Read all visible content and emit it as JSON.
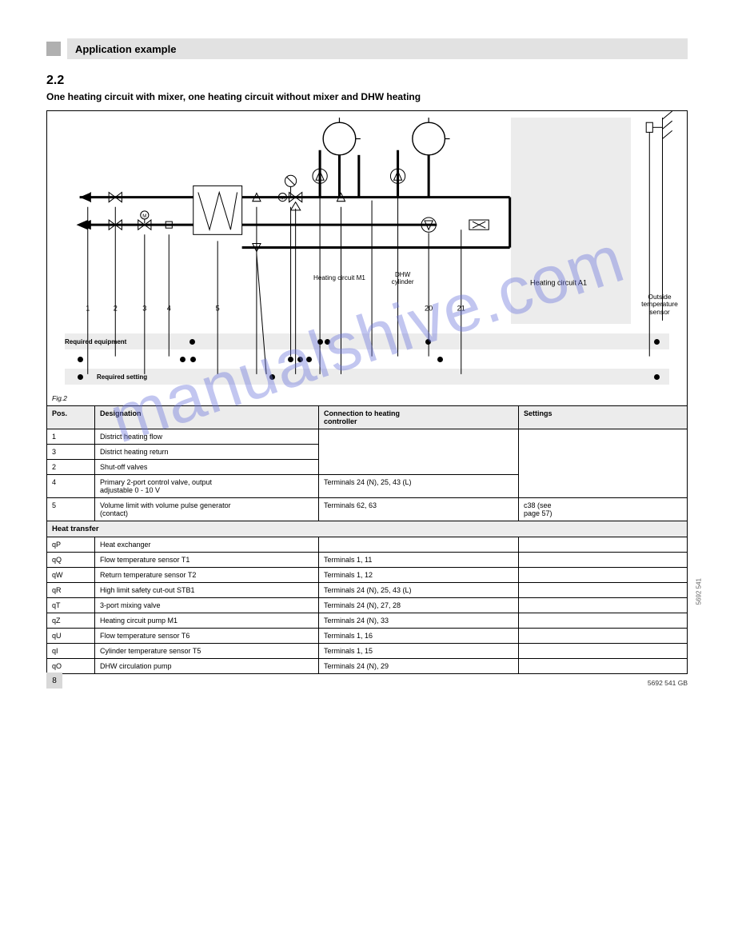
{
  "page_number": "8",
  "header": {
    "title": "Application example"
  },
  "section": {
    "number": "2.2",
    "subtitle": "One heating circuit with mixer, one heating circuit without mixer and DHW heating"
  },
  "diagram": {
    "fig_label": "Fig.2",
    "outside_temp_label": "Outside\ntemperature\nsensor",
    "labels": {
      "1": "1",
      "2": "2",
      "3": "3",
      "4": "4",
      "5": "5",
      "21": "21",
      "20": "20",
      "M1_heating": "Heating circuit M1",
      "M1_dhw": "DHW\ncylinder",
      "A1_heating": "Heating circuit A1"
    },
    "band1": {
      "title": "Required equipment",
      "cells": [
        "",
        "●",
        "",
        "",
        "",
        "●●",
        "",
        "●",
        "",
        "●"
      ]
    },
    "band2_cells": [
      "●",
      "",
      "●  ●",
      "",
      "●  ●  ●",
      "",
      "",
      "●",
      "",
      ""
    ],
    "band3": {
      "title": "Required setting",
      "right": "●"
    }
  },
  "tables": {
    "header_row1": [
      "Pos.",
      "Designation",
      "Connection to heating\ncontroller",
      "Settings"
    ],
    "rows1": [
      [
        "1",
        "District heating flow",
        "",
        ""
      ],
      [
        "3",
        "District heating return",
        "",
        ""
      ],
      [
        "2",
        "Shut-off valves",
        "",
        ""
      ],
      [
        "4",
        "Primary 2-port control valve, output\nadjustable 0 - 10 V",
        "Terminals 24 (N), 25, 43 (L)",
        "c38 (see\npage 57)"
      ],
      [
        "5",
        "Volume limit with volume pulse generator\n(contact)",
        "Terminals 62, 63",
        ""
      ]
    ],
    "section_head": "Heat transfer",
    "rows2": [
      [
        "qP",
        "Heat exchanger",
        "",
        ""
      ],
      [
        "qQ",
        "Flow temperature sensor T1",
        "Terminals 1, 11",
        ""
      ],
      [
        "qW",
        "Return temperature sensor T2",
        "Terminals 1, 12",
        ""
      ],
      [
        "qR",
        "High limit safety cut-out STB1",
        "Terminals 24 (N), 25, 43 (L)",
        ""
      ],
      [
        "qT",
        "3-port mixing valve",
        "Terminals 24 (N), 27, 28",
        ""
      ],
      [
        "qZ",
        "Heating circuit pump M1",
        "Terminals 24 (N), 33",
        ""
      ],
      [
        "qU",
        "Flow temperature sensor T6",
        "Terminals 1, 16",
        ""
      ],
      [
        "qI",
        "Cylinder temperature sensor T5",
        "Terminals 1, 15",
        ""
      ],
      [
        "qO",
        "DHW circulation pump",
        "Terminals 24 (N), 29",
        ""
      ]
    ]
  },
  "footer_right": "5692 541 GB",
  "rot": "5692 541",
  "watermark": "manualshive.com"
}
